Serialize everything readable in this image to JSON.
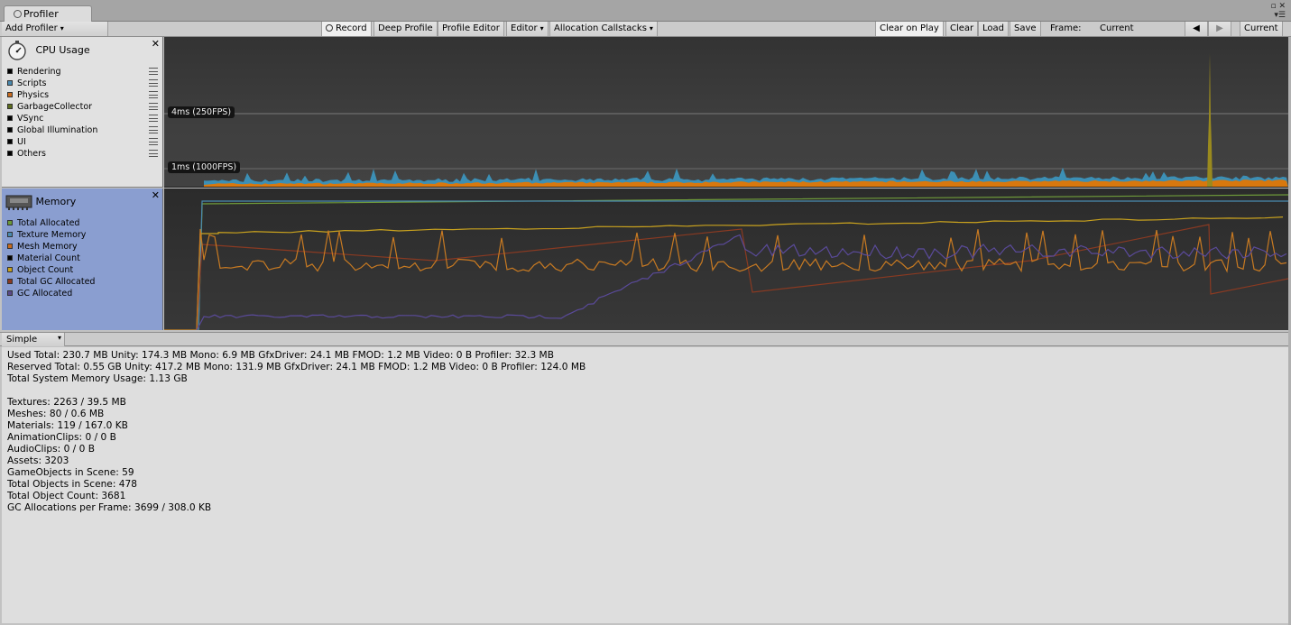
{
  "window": {
    "tab_title": "Profiler"
  },
  "toolbar": {
    "add_profiler": "Add Profiler",
    "record": "Record",
    "deep_profile": "Deep Profile",
    "profile_editor": "Profile Editor",
    "editor": "Editor",
    "allocation_callstacks": "Allocation Callstacks",
    "clear_on_play": "Clear on Play",
    "clear": "Clear",
    "load": "Load",
    "save": "Save",
    "frame_label": "Frame:",
    "frame_value": "Current",
    "current_button": "Current"
  },
  "cpu_module": {
    "title": "CPU Usage",
    "legend": [
      {
        "label": "Rendering",
        "color": "#000000"
      },
      {
        "label": "Scripts",
        "color": "#4a8ab0"
      },
      {
        "label": "Physics",
        "color": "#c86a1e"
      },
      {
        "label": "GarbageCollector",
        "color": "#5d6e1e"
      },
      {
        "label": "VSync",
        "color": "#000000"
      },
      {
        "label": "Global Illumination",
        "color": "#000000"
      },
      {
        "label": "UI",
        "color": "#000000"
      },
      {
        "label": "Others",
        "color": "#000000"
      }
    ],
    "label_4ms": "4ms (250FPS)",
    "label_1ms": "1ms (1000FPS)"
  },
  "memory_module": {
    "title": "Memory",
    "legend": [
      {
        "label": "Total Allocated",
        "color": "#6b9a3a"
      },
      {
        "label": "Texture Memory",
        "color": "#4a8ab0"
      },
      {
        "label": "Mesh Memory",
        "color": "#c86a1e"
      },
      {
        "label": "Material Count",
        "color": "#000000"
      },
      {
        "label": "Object Count",
        "color": "#c9a21e"
      },
      {
        "label": "Total GC Allocated",
        "color": "#8a3a22"
      },
      {
        "label": "GC Allocated",
        "color": "#5a4a8a"
      }
    ]
  },
  "view_mode": "Simple",
  "details": {
    "used_total": "Used Total: 230.7 MB   Unity: 174.3 MB   Mono: 6.9 MB   GfxDriver: 24.1 MB   FMOD: 1.2 MB   Video: 0 B   Profiler: 32.3 MB",
    "reserved_total": "Reserved Total: 0.55 GB   Unity: 417.2 MB   Mono: 131.9 MB   GfxDriver: 24.1 MB   FMOD: 1.2 MB   Video: 0 B   Profiler: 124.0 MB",
    "system_memory": "Total System Memory Usage: 1.13 GB",
    "textures": "Textures: 2263 / 39.5 MB",
    "meshes": "Meshes: 80 / 0.6 MB",
    "materials": "Materials: 119 / 167.0 KB",
    "animation_clips": "AnimationClips: 0 / 0 B",
    "audio_clips": "AudioClips: 0 / 0 B",
    "assets": "Assets: 3203",
    "gameobjects": "GameObjects in Scene: 59",
    "total_objects_scene": "Total Objects in Scene: 478",
    "total_object_count": "Total Object Count: 3681",
    "gc_allocations": "GC Allocations per Frame: 3699 / 308.0 KB"
  }
}
